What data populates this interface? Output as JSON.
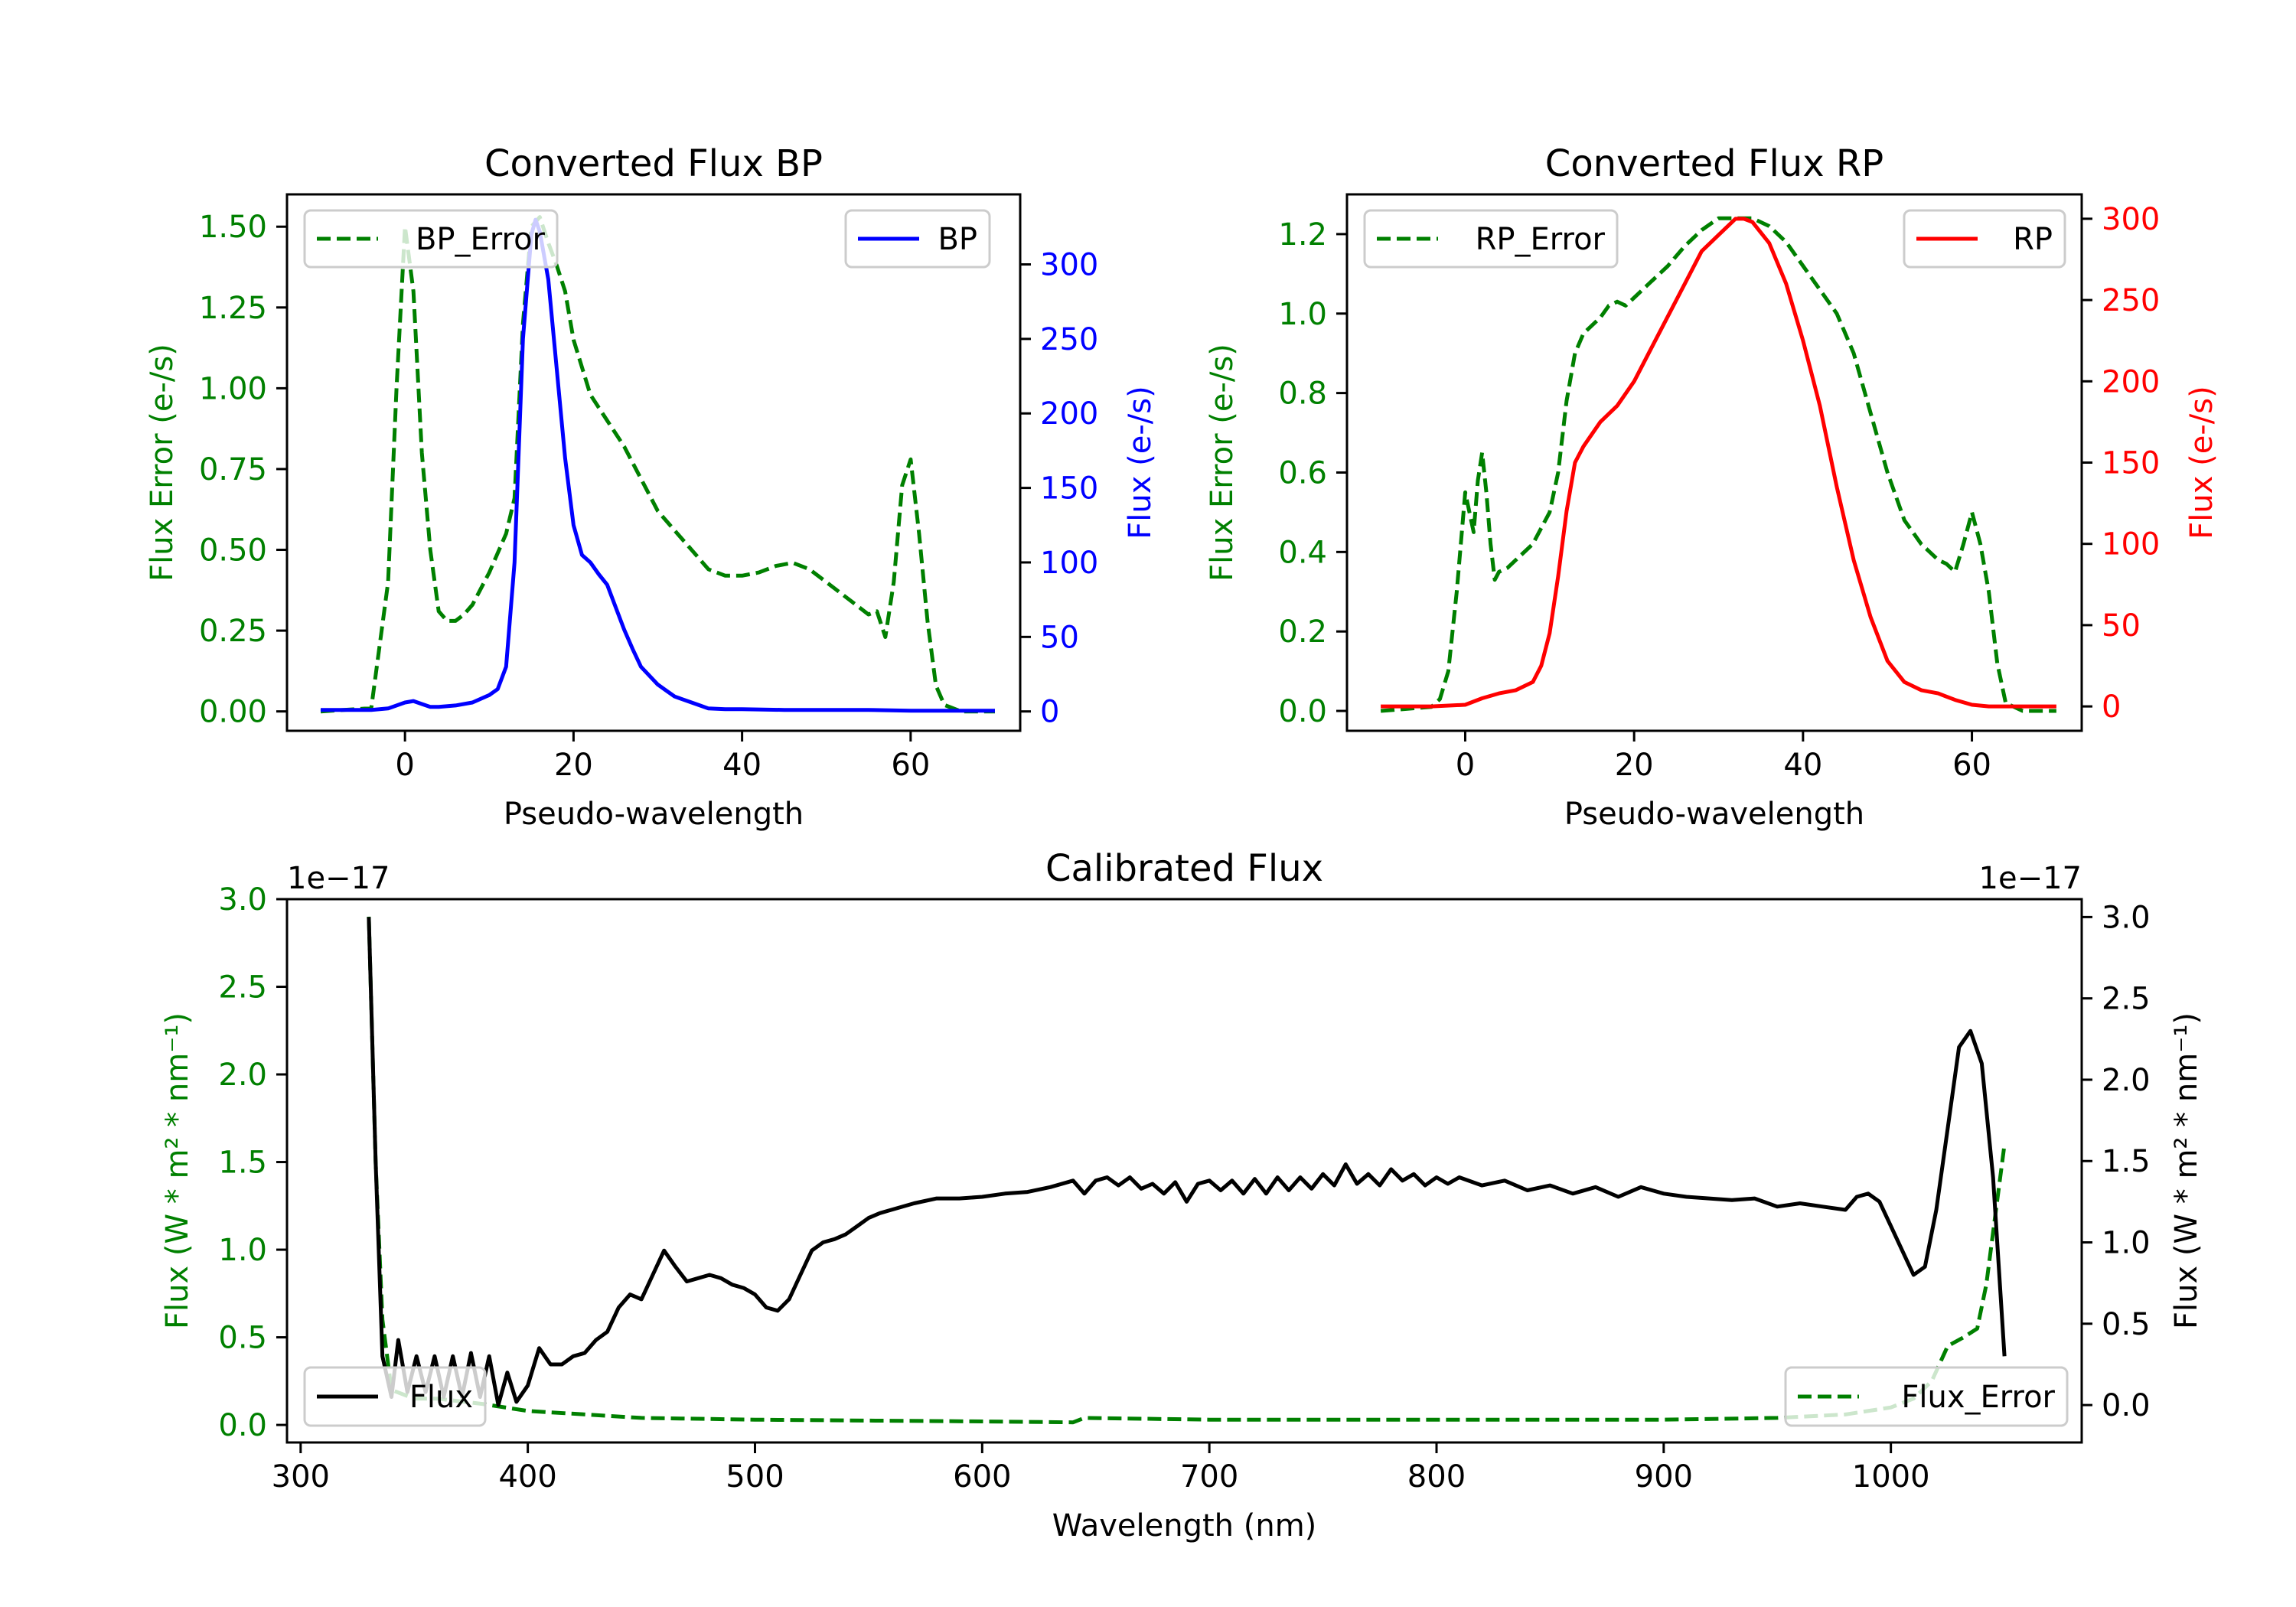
{
  "colors": {
    "green": "#008000",
    "blue": "#0000ff",
    "red": "#ff0000",
    "black": "#000000",
    "legend_border": "#cccccc"
  },
  "chart_data": [
    {
      "id": "bp",
      "type": "line",
      "title": "Converted Flux BP",
      "xlabel": "Pseudo-wavelength",
      "ylabel_left": "Flux Error (e-/s)",
      "ylabel_right": "Flux (e-/s)",
      "xlim": [
        -14,
        73
      ],
      "ylim_left": [
        -0.06,
        1.6
      ],
      "ylim_right": [
        -13,
        347
      ],
      "xticks": [
        0,
        20,
        40,
        60
      ],
      "xtick_labels": [
        "0",
        "20",
        "40",
        "60"
      ],
      "yticks_left": [
        0,
        0.25,
        0.5,
        0.75,
        1.0,
        1.25,
        1.5
      ],
      "ytick_labels_left": [
        "0.00",
        "0.25",
        "0.50",
        "0.75",
        "1.00",
        "1.25",
        "1.50"
      ],
      "yticks_right": [
        0,
        50,
        100,
        150,
        200,
        250,
        300
      ],
      "ytick_labels_right": [
        "0",
        "50",
        "100",
        "150",
        "200",
        "250",
        "300"
      ],
      "series": [
        {
          "name": "BP_Error",
          "axis": "left",
          "color": "green",
          "style": "dashed",
          "x": [
            -10,
            -4,
            -2,
            -1,
            0,
            1,
            2,
            3,
            4,
            5,
            6,
            7,
            8,
            10,
            12,
            13,
            14,
            15,
            16,
            17,
            18,
            19,
            20,
            22,
            24,
            26,
            28,
            30,
            32,
            34,
            36,
            38,
            40,
            42,
            44,
            46,
            48,
            50,
            52,
            54,
            55,
            56,
            57,
            58,
            59,
            60,
            61,
            62,
            63,
            64,
            66,
            68,
            70
          ],
          "y": [
            0.0,
            0.01,
            0.4,
            1.0,
            1.5,
            1.3,
            0.8,
            0.5,
            0.31,
            0.28,
            0.28,
            0.3,
            0.33,
            0.43,
            0.55,
            0.66,
            1.2,
            1.5,
            1.53,
            1.45,
            1.38,
            1.3,
            1.15,
            0.98,
            0.9,
            0.82,
            0.72,
            0.62,
            0.56,
            0.5,
            0.44,
            0.42,
            0.42,
            0.43,
            0.45,
            0.46,
            0.44,
            0.4,
            0.36,
            0.32,
            0.3,
            0.31,
            0.23,
            0.4,
            0.7,
            0.78,
            0.55,
            0.28,
            0.08,
            0.02,
            0.0,
            0.0,
            0.0
          ]
        },
        {
          "name": "BP",
          "axis": "right",
          "color": "blue",
          "style": "solid",
          "x": [
            -10,
            -4,
            -2,
            0,
            1,
            2,
            3,
            4,
            6,
            8,
            10,
            11,
            12,
            13,
            14,
            15,
            15.5,
            16,
            17,
            18,
            19,
            20,
            21,
            22,
            23,
            24,
            25,
            26,
            27,
            28,
            30,
            31,
            32,
            34,
            35,
            36,
            38,
            40,
            45,
            50,
            55,
            60,
            65,
            70
          ],
          "y": [
            1,
            1,
            2,
            6,
            7,
            5,
            3,
            3,
            4,
            6,
            11,
            15,
            30,
            100,
            250,
            320,
            330,
            322,
            290,
            230,
            170,
            125,
            105,
            100,
            92,
            85,
            70,
            55,
            42,
            30,
            18,
            14,
            10,
            6,
            4,
            2,
            1.5,
            1.5,
            1,
            1,
            1,
            0.5,
            0.5,
            0.5
          ]
        }
      ]
    },
    {
      "id": "rp",
      "type": "line",
      "title": "Converted Flux RP",
      "xlabel": "Pseudo-wavelength",
      "ylabel_left": "Flux Error (e-/s)",
      "ylabel_right": "Flux (e-/s)",
      "xlim": [
        -14,
        73
      ],
      "ylim_left": [
        -0.05,
        1.3
      ],
      "ylim_right": [
        -15,
        315
      ],
      "xticks": [
        0,
        20,
        40,
        60
      ],
      "xtick_labels": [
        "0",
        "20",
        "40",
        "60"
      ],
      "yticks_left": [
        0,
        0.2,
        0.4,
        0.6,
        0.8,
        1.0,
        1.2
      ],
      "ytick_labels_left": [
        "0.0",
        "0.2",
        "0.4",
        "0.6",
        "0.8",
        "1.0",
        "1.2"
      ],
      "yticks_right": [
        0,
        50,
        100,
        150,
        200,
        250,
        300
      ],
      "ytick_labels_right": [
        "0",
        "50",
        "100",
        "150",
        "200",
        "250",
        "300"
      ],
      "series": [
        {
          "name": "RP_Error",
          "axis": "left",
          "color": "green",
          "style": "dashed",
          "x": [
            -10,
            -4,
            -3,
            -2,
            -1,
            0,
            0.5,
            1,
            1.5,
            2,
            2.5,
            3,
            3.5,
            4,
            5,
            6,
            8,
            10,
            11,
            12,
            13,
            14,
            16,
            17,
            18,
            19,
            20,
            22,
            24,
            26,
            28,
            30,
            32,
            34,
            36,
            38,
            40,
            42,
            44,
            46,
            48,
            50,
            52,
            54,
            55,
            56,
            57,
            58,
            59,
            60,
            61,
            62,
            63,
            64,
            66,
            70
          ],
          "y": [
            0.0,
            0.01,
            0.03,
            0.1,
            0.3,
            0.55,
            0.5,
            0.45,
            0.58,
            0.65,
            0.55,
            0.42,
            0.33,
            0.35,
            0.36,
            0.38,
            0.42,
            0.5,
            0.6,
            0.78,
            0.9,
            0.95,
            0.99,
            1.02,
            1.03,
            1.02,
            1.04,
            1.08,
            1.12,
            1.17,
            1.21,
            1.24,
            1.24,
            1.24,
            1.22,
            1.18,
            1.12,
            1.06,
            1.0,
            0.9,
            0.75,
            0.6,
            0.48,
            0.42,
            0.4,
            0.38,
            0.37,
            0.35,
            0.42,
            0.5,
            0.42,
            0.3,
            0.12,
            0.02,
            0.0,
            0.0
          ]
        },
        {
          "name": "RP",
          "axis": "right",
          "color": "red",
          "style": "solid",
          "x": [
            -10,
            -4,
            0,
            2,
            4,
            6,
            8,
            9,
            10,
            11,
            12,
            13,
            14,
            16,
            18,
            20,
            22,
            24,
            26,
            28,
            30,
            32,
            33,
            34,
            36,
            38,
            40,
            42,
            44,
            46,
            48,
            50,
            52,
            54,
            56,
            58,
            60,
            62,
            65,
            70
          ],
          "y": [
            0,
            0,
            1,
            5,
            8,
            10,
            15,
            25,
            45,
            80,
            120,
            150,
            160,
            175,
            185,
            200,
            220,
            240,
            260,
            280,
            290,
            300,
            300,
            298,
            285,
            260,
            225,
            185,
            135,
            90,
            55,
            28,
            15,
            10,
            8,
            4,
            1,
            0,
            0,
            0
          ]
        }
      ]
    },
    {
      "id": "calibrated",
      "type": "line",
      "title": "Calibrated Flux",
      "xlabel": "Wavelength (nm)",
      "ylabel_left": "Flux (W * m² * nm⁻¹)",
      "ylabel_right": "Flux (W * m² * nm⁻¹)",
      "offset_left": "1e−17",
      "offset_right": "1e−17",
      "xlim": [
        294,
        1084
      ],
      "ylim_left": [
        -0.1,
        3.0
      ],
      "ylim_right": [
        -0.23,
        3.11
      ],
      "xticks": [
        300,
        400,
        500,
        600,
        700,
        800,
        900,
        1000
      ],
      "xtick_labels": [
        "300",
        "400",
        "500",
        "600",
        "700",
        "800",
        "900",
        "1000"
      ],
      "yticks_left": [
        0,
        0.5,
        1.0,
        1.5,
        2.0,
        2.5,
        3.0
      ],
      "ytick_labels_left": [
        "0.0",
        "0.5",
        "1.0",
        "1.5",
        "2.0",
        "2.5",
        "3.0"
      ],
      "yticks_right": [
        0,
        0.5,
        1.0,
        1.5,
        2.0,
        2.5,
        3.0
      ],
      "ytick_labels_right": [
        "0.0",
        "0.5",
        "1.0",
        "1.5",
        "2.0",
        "2.5",
        "3.0"
      ],
      "series": [
        {
          "name": "Flux_Error",
          "axis": "left",
          "color": "green",
          "style": "dashed",
          "x": [
            330,
            333,
            336,
            340,
            350,
            360,
            380,
            400,
            450,
            500,
            550,
            600,
            640,
            645,
            700,
            800,
            900,
            950,
            980,
            1000,
            1010,
            1018,
            1025,
            1032,
            1038,
            1042,
            1046,
            1050
          ],
          "y": [
            2.9,
            1.5,
            0.6,
            0.2,
            0.15,
            0.15,
            0.12,
            0.08,
            0.04,
            0.03,
            0.025,
            0.02,
            0.015,
            0.04,
            0.03,
            0.03,
            0.03,
            0.04,
            0.06,
            0.1,
            0.15,
            0.25,
            0.45,
            0.5,
            0.55,
            0.8,
            1.2,
            1.6
          ]
        },
        {
          "name": "Flux",
          "axis": "right",
          "color": "black",
          "style": "solid",
          "x": [
            330,
            333,
            336,
            340,
            343,
            347,
            351,
            355,
            359,
            363,
            367,
            371,
            375,
            379,
            383,
            387,
            391,
            395,
            400,
            405,
            410,
            415,
            420,
            425,
            430,
            435,
            440,
            445,
            450,
            455,
            460,
            465,
            470,
            475,
            480,
            485,
            490,
            495,
            500,
            505,
            510,
            515,
            520,
            525,
            530,
            535,
            540,
            545,
            550,
            555,
            560,
            570,
            580,
            590,
            600,
            610,
            620,
            630,
            640,
            645,
            650,
            655,
            660,
            665,
            670,
            675,
            680,
            685,
            690,
            695,
            700,
            705,
            710,
            715,
            720,
            725,
            730,
            735,
            740,
            745,
            750,
            755,
            760,
            765,
            770,
            775,
            780,
            785,
            790,
            795,
            800,
            805,
            810,
            820,
            830,
            840,
            850,
            860,
            870,
            880,
            890,
            900,
            910,
            920,
            930,
            940,
            950,
            960,
            970,
            980,
            985,
            990,
            995,
            1000,
            1005,
            1010,
            1015,
            1020,
            1025,
            1030,
            1035,
            1040,
            1045,
            1050
          ],
          "y": [
            3.0,
            1.5,
            0.3,
            0.05,
            0.4,
            0.08,
            0.3,
            0.08,
            0.3,
            0.05,
            0.3,
            0.05,
            0.32,
            0.05,
            0.3,
            0.0,
            0.2,
            0.02,
            0.12,
            0.35,
            0.25,
            0.25,
            0.3,
            0.32,
            0.4,
            0.45,
            0.6,
            0.68,
            0.65,
            0.8,
            0.95,
            0.85,
            0.76,
            0.78,
            0.8,
            0.78,
            0.74,
            0.72,
            0.68,
            0.6,
            0.58,
            0.65,
            0.8,
            0.95,
            1.0,
            1.02,
            1.05,
            1.1,
            1.15,
            1.18,
            1.2,
            1.24,
            1.27,
            1.27,
            1.28,
            1.3,
            1.31,
            1.34,
            1.38,
            1.3,
            1.38,
            1.4,
            1.35,
            1.4,
            1.33,
            1.36,
            1.3,
            1.37,
            1.25,
            1.36,
            1.38,
            1.32,
            1.38,
            1.3,
            1.39,
            1.3,
            1.4,
            1.32,
            1.4,
            1.33,
            1.42,
            1.35,
            1.48,
            1.36,
            1.42,
            1.35,
            1.45,
            1.38,
            1.42,
            1.35,
            1.4,
            1.36,
            1.4,
            1.35,
            1.38,
            1.32,
            1.35,
            1.3,
            1.34,
            1.28,
            1.34,
            1.3,
            1.28,
            1.27,
            1.26,
            1.27,
            1.22,
            1.24,
            1.22,
            1.2,
            1.28,
            1.3,
            1.25,
            1.1,
            0.95,
            0.8,
            0.85,
            1.2,
            1.7,
            2.2,
            2.3,
            2.1,
            1.4,
            0.3
          ]
        }
      ]
    }
  ]
}
